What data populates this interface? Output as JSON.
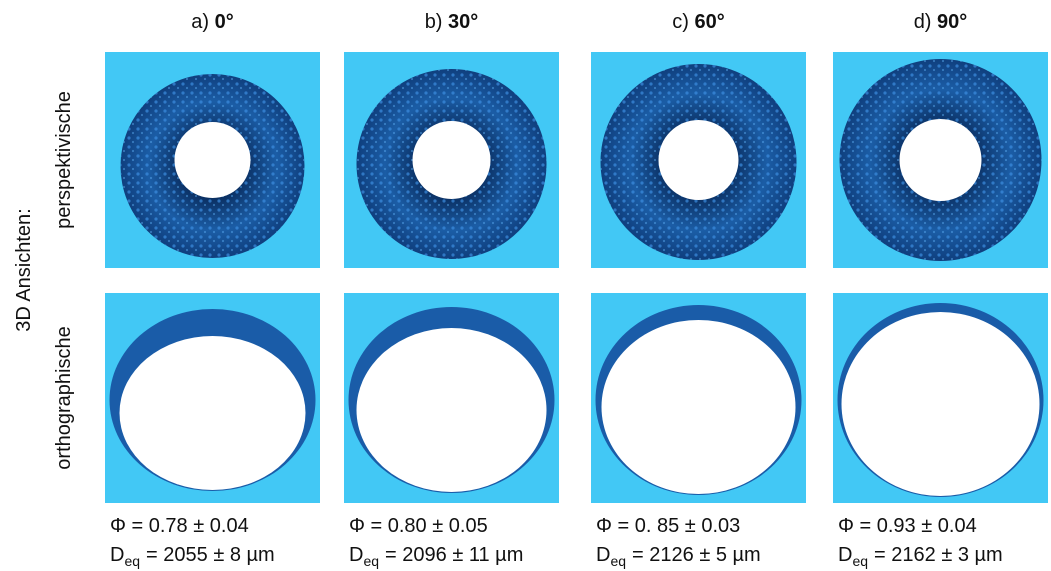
{
  "row_group_label": "3D Ansichten:",
  "rows": [
    "perspektivische",
    "orthographische"
  ],
  "columns": [
    {
      "letter": "a)",
      "angle": "0°",
      "sphericity": "Φ = 0.78 ± 0.04",
      "deq_symbol": "D",
      "deq_subscript": "eq",
      "deq_value": "= 2055 ± 8 µm"
    },
    {
      "letter": "b)",
      "angle": "30°",
      "sphericity": "Φ = 0.80 ± 0.05",
      "deq_symbol": "D",
      "deq_subscript": "eq",
      "deq_value": "= 2096 ± 11 µm"
    },
    {
      "letter": "c)",
      "angle": "60°",
      "sphericity": "Φ = 0. 85 ± 0.03",
      "deq_symbol": "D",
      "deq_subscript": "eq",
      "deq_value": "= 2126 ± 5 µm"
    },
    {
      "letter": "d)",
      "angle": "90°",
      "sphericity": "Φ = 0.93 ± 0.04",
      "deq_symbol": "D",
      "deq_subscript": "eq",
      "deq_value": "= 2162 ± 3 µm"
    }
  ]
}
